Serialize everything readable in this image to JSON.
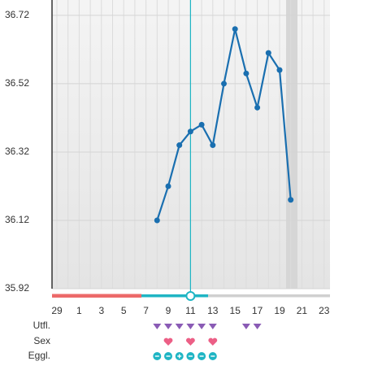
{
  "chart_data": {
    "type": "line",
    "categories": [
      29,
      null,
      1,
      null,
      3,
      null,
      5,
      null,
      7,
      null,
      9,
      null,
      11,
      null,
      13,
      null,
      15,
      null,
      17,
      null,
      19,
      null,
      21,
      null,
      23
    ],
    "series": [
      {
        "color": "#1a6fb0",
        "values": [
          null,
          null,
          null,
          null,
          null,
          null,
          null,
          null,
          null,
          36.12,
          36.22,
          36.34,
          36.38,
          36.4,
          36.34,
          36.52,
          36.68,
          36.55,
          36.45,
          36.61,
          36.56,
          36.18,
          null,
          null,
          null
        ]
      }
    ],
    "ylim": [
      35.92,
      36.765
    ],
    "yticks": [
      35.92,
      36.12,
      36.32,
      36.52,
      36.72
    ],
    "grid": true
  },
  "rows": [
    {
      "label": "Utfl."
    },
    {
      "label": "Sex"
    },
    {
      "label": "Eggl."
    }
  ]
}
